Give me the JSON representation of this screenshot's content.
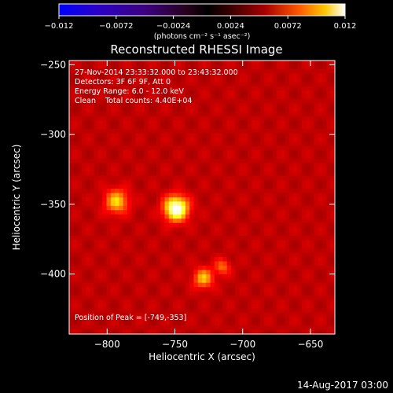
{
  "chart_data": {
    "type": "heatmap",
    "title": "Reconstructed RHESSI Image",
    "xlabel": "Heliocentric X (arcsec)",
    "ylabel": "Heliocentric Y (arcsec)",
    "xlim": [
      -828,
      -632
    ],
    "ylim": [
      -443,
      -247
    ],
    "x_ticks": [
      -800,
      -750,
      -700,
      -650
    ],
    "x_tick_labels": [
      "−800",
      "−750",
      "−700",
      "−650"
    ],
    "y_ticks": [
      -250,
      -300,
      -350,
      -400
    ],
    "y_tick_labels": [
      "−250",
      "−300",
      "−350",
      "−400"
    ],
    "colormap": "hot",
    "colorbar": {
      "min": -0.012,
      "max": 0.012,
      "ticks": [
        -0.012,
        -0.0072,
        -0.0024,
        0.0024,
        0.0072,
        0.012
      ],
      "tick_labels": [
        "−0.012",
        "−0.0072",
        "−0.0024",
        "0.0024",
        "0.0072",
        "0.012"
      ],
      "units": "(photons cm⁻² s⁻¹ asec⁻²)"
    },
    "annotations": [
      "27-Nov-2014 23:33:32.000 to 23:43:32.000",
      "Detectors: 3F 6F 9F, Att 0",
      "Energy Range: 6.0 - 12.0 keV",
      "Clean    Total counts: 4.40E+04"
    ],
    "peak_text": "Position of Peak = [-749,-353]",
    "peak": {
      "x": -749,
      "y": -353
    },
    "sources": [
      {
        "x": -749,
        "y": -353,
        "sigma": 6,
        "amp": 0.012
      },
      {
        "x": -793,
        "y": -348,
        "sigma": 6,
        "amp": 0.0065
      },
      {
        "x": -729,
        "y": -403,
        "sigma": 5,
        "amp": 0.006
      },
      {
        "x": -715,
        "y": -395,
        "sigma": 4,
        "amp": 0.004
      }
    ]
  },
  "footer": {
    "timestamp": "14-Aug-2017 03:00"
  }
}
